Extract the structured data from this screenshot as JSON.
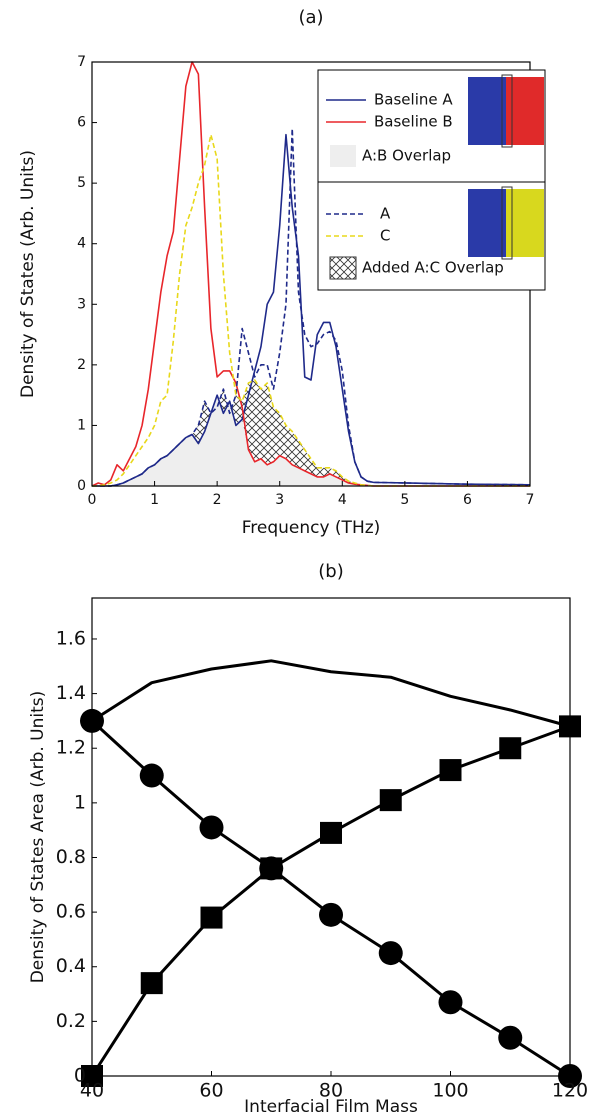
{
  "chart_data": [
    {
      "type": "line",
      "title": "(a)",
      "x_label": "Frequency (THz)",
      "y_label": "Density of States (Arb. Units)",
      "x": [
        0,
        0.1,
        0.2,
        0.3,
        0.4,
        0.5,
        0.6,
        0.7,
        0.8,
        0.9,
        1,
        1.1,
        1.2,
        1.3,
        1.4,
        1.5,
        1.6,
        1.7,
        1.8,
        1.9,
        2,
        2.1,
        2.2,
        2.3,
        2.4,
        2.5,
        2.6,
        2.7,
        2.8,
        2.9,
        3,
        3.1,
        3.2,
        3.3,
        3.4,
        3.5,
        3.6,
        3.7,
        3.8,
        3.9,
        4,
        4.1,
        4.2,
        4.3,
        4.4,
        4.5,
        5,
        6,
        7
      ],
      "series": [
        {
          "name": "Baseline A",
          "color": "#1f2a8a",
          "dash": false,
          "values": [
            0,
            0,
            0,
            0,
            0.02,
            0.05,
            0.1,
            0.15,
            0.2,
            0.3,
            0.35,
            0.45,
            0.5,
            0.6,
            0.7,
            0.8,
            0.85,
            0.7,
            0.9,
            1.2,
            1.5,
            1.2,
            1.4,
            1.0,
            1.1,
            1.5,
            1.9,
            2.3,
            3.0,
            3.2,
            4.3,
            5.8,
            4.6,
            3.8,
            1.8,
            1.75,
            2.5,
            2.7,
            2.7,
            2.3,
            1.6,
            0.9,
            0.4,
            0.15,
            0.08,
            0.06,
            0.05,
            0.03,
            0.02
          ]
        },
        {
          "name": "Baseline B",
          "color": "#e8262b",
          "dash": false,
          "values": [
            0,
            0.05,
            0.02,
            0.1,
            0.35,
            0.25,
            0.45,
            0.65,
            1.0,
            1.6,
            2.4,
            3.2,
            3.8,
            4.2,
            5.4,
            6.6,
            7.0,
            6.8,
            4.6,
            2.6,
            1.8,
            1.9,
            1.9,
            1.7,
            1.3,
            0.6,
            0.4,
            0.45,
            0.35,
            0.4,
            0.5,
            0.45,
            0.35,
            0.3,
            0.25,
            0.2,
            0.15,
            0.15,
            0.2,
            0.15,
            0.1,
            0.05,
            0.03,
            0.02,
            0.01,
            0,
            0,
            0,
            0
          ]
        },
        {
          "name": "A",
          "color": "#1f2a8a",
          "dash": true,
          "values": [
            0,
            0,
            0,
            0,
            0.02,
            0.05,
            0.1,
            0.15,
            0.2,
            0.3,
            0.35,
            0.45,
            0.5,
            0.6,
            0.7,
            0.8,
            0.85,
            1.0,
            1.4,
            1.2,
            1.3,
            1.6,
            1.2,
            1.5,
            2.6,
            2.2,
            1.8,
            2.0,
            2.0,
            1.6,
            2.2,
            3.0,
            5.9,
            3.2,
            2.5,
            2.3,
            2.35,
            2.5,
            2.55,
            2.4,
            1.9,
            1.0,
            0.4,
            0.15,
            0.08,
            0.06,
            0.05,
            0.03,
            0.02
          ]
        },
        {
          "name": "C",
          "color": "#e8d81a",
          "dash": true,
          "values": [
            0,
            0,
            0.02,
            0.05,
            0.1,
            0.2,
            0.35,
            0.5,
            0.65,
            0.8,
            1.0,
            1.4,
            1.5,
            2.4,
            3.5,
            4.3,
            4.6,
            5.0,
            5.3,
            5.8,
            5.4,
            3.5,
            2.2,
            1.5,
            1.4,
            1.7,
            1.75,
            1.6,
            1.7,
            1.3,
            1.2,
            1.0,
            0.9,
            0.75,
            0.6,
            0.45,
            0.3,
            0.3,
            0.3,
            0.25,
            0.15,
            0.08,
            0.05,
            0.02,
            0.01,
            0,
            0,
            0,
            0
          ]
        }
      ],
      "overlaps": [
        {
          "name": "A:B  Overlap",
          "between": [
            "Baseline A",
            "Baseline B"
          ],
          "fill": "#eeeeee"
        },
        {
          "name": "Added A:C Overlap",
          "between": [
            "A",
            "C"
          ],
          "pattern": "crosshatch"
        }
      ],
      "xlim": [
        0,
        7
      ],
      "ylim": [
        0,
        7
      ],
      "xticks": [
        0,
        1,
        2,
        3,
        4,
        5,
        6,
        7
      ],
      "yticks": [
        0,
        1,
        2,
        3,
        4,
        5,
        6,
        7
      ]
    },
    {
      "type": "line",
      "title": "(b)",
      "x_label": "Interfacial Film Mass",
      "y_label": "Density of States Area (Arb. Units)",
      "x": [
        40,
        50,
        60,
        70,
        80,
        90,
        100,
        110,
        120
      ],
      "series": [
        {
          "color": "#000000",
          "marker": "circle",
          "values": [
            1.3,
            1.1,
            0.91,
            0.76,
            0.59,
            0.45,
            0.27,
            0.14,
            0.0
          ]
        },
        {
          "color": "#000000",
          "marker": "square",
          "values": [
            0,
            0.34,
            0.58,
            0.76,
            0.89,
            1.01,
            1.12,
            1.2,
            1.28
          ]
        },
        {
          "color": "#000000",
          "values": [
            1.3,
            1.44,
            1.49,
            1.52,
            1.48,
            1.46,
            1.39,
            1.34,
            1.28
          ]
        }
      ],
      "xlim": [
        40,
        120
      ],
      "ylim": [
        0,
        1.75
      ],
      "xticks": [
        40,
        60,
        80,
        100,
        120
      ],
      "yticks": [
        0,
        0.2,
        0.4,
        0.6,
        0.8,
        1,
        1.2,
        1.4,
        1.6
      ]
    }
  ]
}
